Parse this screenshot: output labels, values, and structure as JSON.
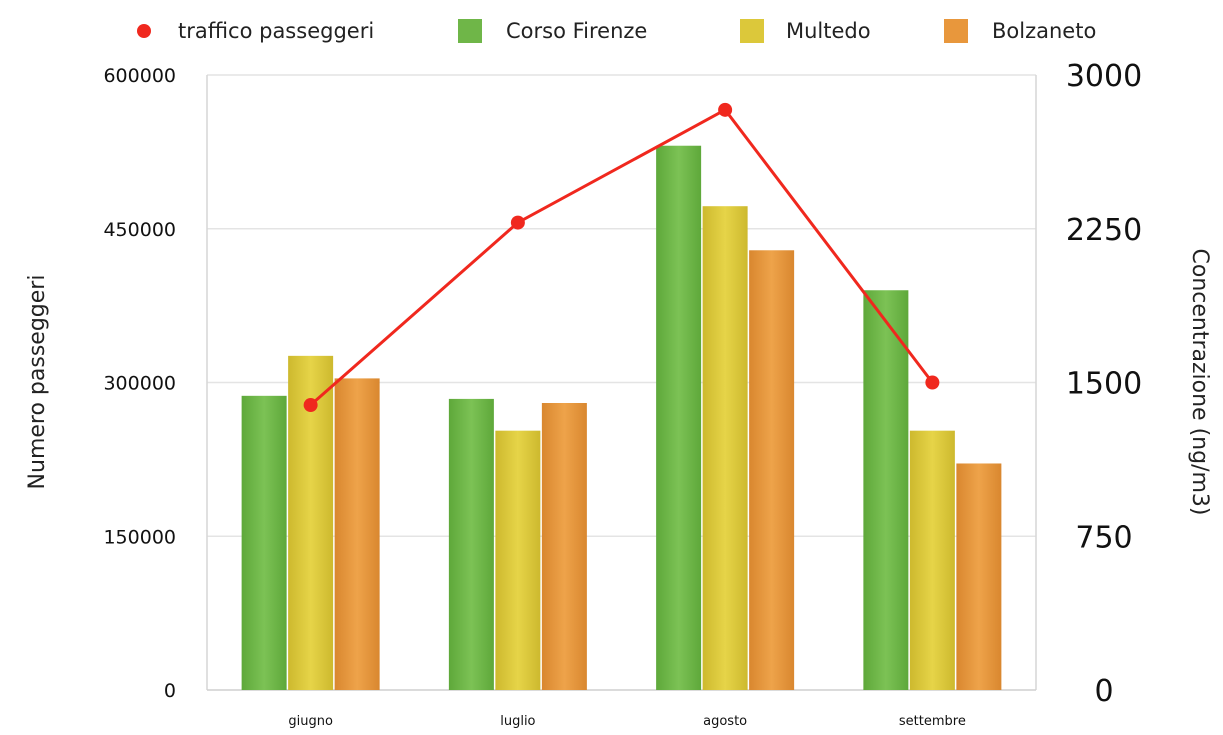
{
  "chart_data": {
    "type": "bar",
    "categories": [
      "giugno",
      "luglio",
      "agosto",
      "settembre"
    ],
    "series": [
      {
        "name": "Corso Firenze",
        "values": [
          287000,
          284000,
          531000,
          390000
        ],
        "color": "#6fb648",
        "axis": "left"
      },
      {
        "name": "Multedo",
        "values": [
          326000,
          253000,
          472000,
          253000
        ],
        "color": "#dcc83a",
        "axis": "left"
      },
      {
        "name": "Bolzaneto",
        "values": [
          304000,
          280000,
          429000,
          221000
        ],
        "color": "#e8973c",
        "axis": "left"
      }
    ],
    "line_series": {
      "name": "traffico passeggeri",
      "values": [
        1390,
        2280,
        2830,
        1500
      ],
      "color": "#f0281e",
      "axis": "right"
    },
    "ylabel": "Numero passeggeri",
    "y2label": "Concentrazione (ng/m3)",
    "ylim": [
      0,
      600000
    ],
    "y2lim": [
      0,
      3000
    ],
    "yticks": [
      "0",
      "150000",
      "300000",
      "450000",
      "600000"
    ],
    "y2ticks": [
      "0",
      "750",
      "1500",
      "2250",
      "3000"
    ],
    "grid": true,
    "legend_position": "top"
  }
}
